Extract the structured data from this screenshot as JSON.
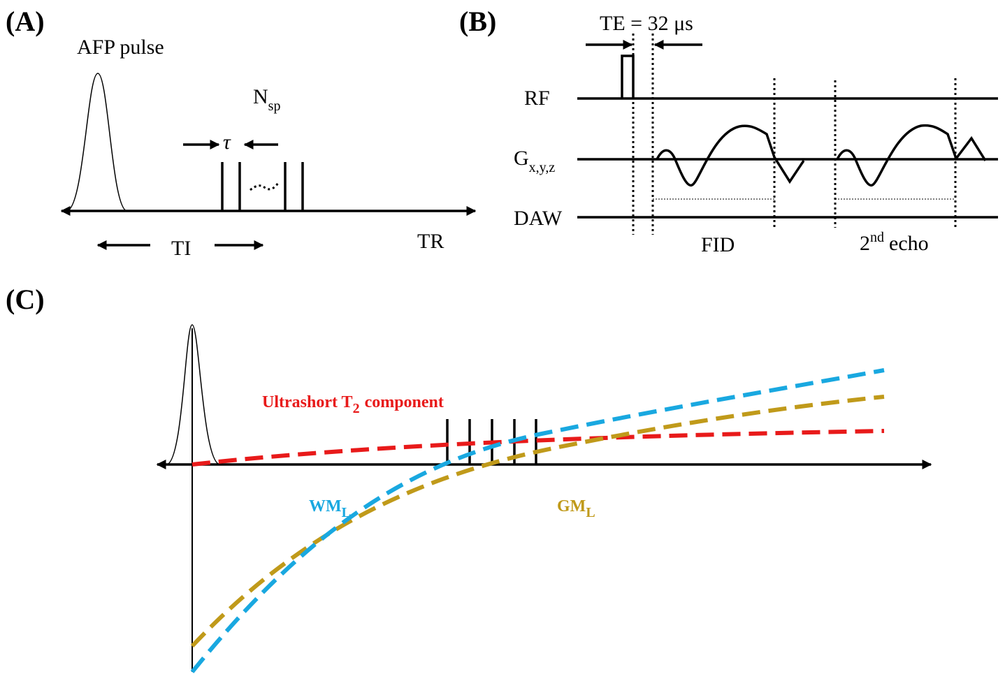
{
  "panel_a": {
    "label": "(A)",
    "pulse": "AFP pulse",
    "nsp": {
      "base": "N",
      "sub": "sp"
    },
    "tau": "τ",
    "ti": "TI",
    "tr": "TR"
  },
  "panel_b": {
    "label": "(B)",
    "te": "TE = 32 μs",
    "rf": "RF",
    "gradient": {
      "base": "G",
      "sub": "x,y,z"
    },
    "daw": "DAW",
    "fid": "FID",
    "echo": {
      "base": "2",
      "sup": "nd",
      "rest": "echo"
    }
  },
  "panel_c": {
    "label": "(C)",
    "ultrashort": {
      "base": "Ultrashort T",
      "sub": "2",
      "rest": "component"
    },
    "wm": {
      "base": "WM",
      "sub": "L"
    },
    "gm": {
      "base": "GM",
      "sub": "L"
    }
  }
}
